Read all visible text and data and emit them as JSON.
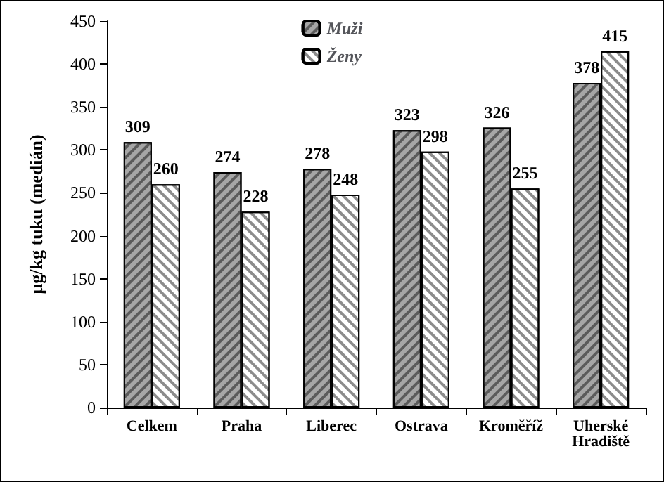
{
  "chart_data": {
    "type": "bar",
    "ylabel": "µg/kg tuku (medián)",
    "categories": [
      "Celkem",
      "Praha",
      "Liberec",
      "Ostrava",
      "Kroměříž",
      "Uherské Hradiště"
    ],
    "series": [
      {
        "name": "Muži",
        "color": "#a6a6a6",
        "values": [
          309,
          274,
          278,
          323,
          326,
          378
        ]
      },
      {
        "name": "Ženy",
        "color": "#ffffff",
        "values": [
          260,
          228,
          248,
          298,
          255,
          415
        ]
      }
    ],
    "ylim": [
      0,
      450
    ],
    "yticks": [
      0,
      50,
      100,
      150,
      200,
      250,
      300,
      350,
      400,
      450
    ],
    "grid": false,
    "legend": "top",
    "data_labels": true
  }
}
